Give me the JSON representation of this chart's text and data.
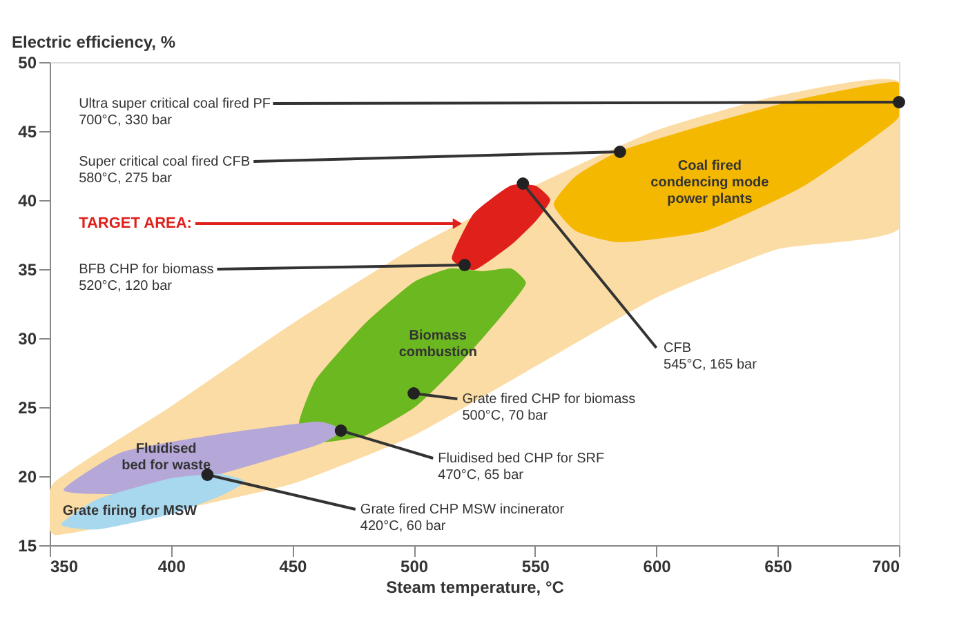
{
  "chart_data": {
    "type": "scatter",
    "xlabel": "Steam temperature, °C",
    "ylabel": "Electric efficiency, %",
    "xlim": [
      350,
      700
    ],
    "xticks": [
      350,
      400,
      450,
      500,
      550,
      600,
      650,
      700
    ],
    "ylim": [
      15,
      50
    ],
    "yticks": [
      15,
      20,
      25,
      30,
      35,
      40,
      45,
      50
    ],
    "grid": false,
    "series": [
      {
        "type": "area",
        "color": "#fbdca4",
        "x": [
          352,
          400,
          450,
          500,
          550,
          600,
          650,
          700,
          700,
          650,
          600,
          550,
          500,
          450,
          400,
          352
        ],
        "values": [
          19.5,
          25,
          31,
          36.5,
          41,
          45,
          47.5,
          48.5,
          38,
          36.5,
          33,
          28,
          23,
          19.5,
          17.5,
          15.8
        ]
      },
      {
        "type": "area",
        "name": "Coal fired\ncondencing mode\npower plants",
        "color": "#f5b800",
        "x": [
          558,
          567,
          585,
          620,
          660,
          699,
          699,
          660,
          620,
          585,
          567
        ],
        "values": [
          39.7,
          41.7,
          43.5,
          45.4,
          47.3,
          48.5,
          45.9,
          41,
          37.8,
          37,
          37.8
        ]
      },
      {
        "type": "area",
        "name": "Biomass\ncombustion",
        "color": "#6cb820",
        "x": [
          453,
          460,
          480,
          500,
          515,
          528,
          540,
          546,
          540,
          528,
          515,
          500,
          480,
          460
        ],
        "values": [
          23.8,
          27,
          31,
          34,
          35,
          34.8,
          35,
          34,
          32.5,
          30,
          27.5,
          25,
          23,
          22.5
        ]
      },
      {
        "type": "area",
        "color": "#e0201b",
        "x": [
          516,
          525,
          540,
          550,
          556,
          550,
          540,
          525
        ],
        "values": [
          35.8,
          39,
          41,
          41,
          40,
          38.5,
          36.8,
          35
        ]
      },
      {
        "type": "area",
        "name": "Fluidised\nbed for waste",
        "color": "#b5a8d8",
        "x": [
          356,
          380,
          420,
          460,
          470,
          460,
          420,
          380
        ],
        "values": [
          19,
          21.7,
          23,
          23.9,
          23.3,
          22.3,
          20.2,
          18.8
        ]
      },
      {
        "type": "area",
        "name": "Grate firing for MSW",
        "color": "#a8d8ee",
        "x": [
          355,
          370,
          400,
          420,
          430,
          420,
          400,
          370
        ],
        "values": [
          16.5,
          18.3,
          19.8,
          20.1,
          19.6,
          18.6,
          17.3,
          16.2
        ]
      },
      {
        "color": "#222222",
        "marker": "circle",
        "x": [
          700,
          585,
          521,
          545,
          500,
          470,
          415
        ],
        "values": [
          47.1,
          43.5,
          35.3,
          41.2,
          26,
          23.3,
          20.1
        ]
      }
    ],
    "annotations": [
      {
        "text": "Ultra super critical coal fired PF\n700°C, 330 bar",
        "x": 700,
        "y": 47.1
      },
      {
        "text": "Super critical coal fired CFB\n580°C, 275 bar",
        "x": 585,
        "y": 43.5
      },
      {
        "text": "BFB CHP for biomass\n520°C, 120 bar",
        "x": 521,
        "y": 35.3
      },
      {
        "text": "CFB\n545°C, 165 bar",
        "x": 545,
        "y": 41.2
      },
      {
        "text": "Grate fired CHP for biomass\n500°C, 70 bar",
        "x": 500,
        "y": 26
      },
      {
        "text": "Fluidised bed CHP for SRF\n470°C, 65 bar",
        "x": 470,
        "y": 23.3
      },
      {
        "text": "Grate fired CHP MSW incinerator\n420°C, 60 bar",
        "x": 415,
        "y": 20.1
      },
      {
        "text": "TARGET AREA:",
        "x": 518,
        "y": 38.3
      }
    ]
  }
}
